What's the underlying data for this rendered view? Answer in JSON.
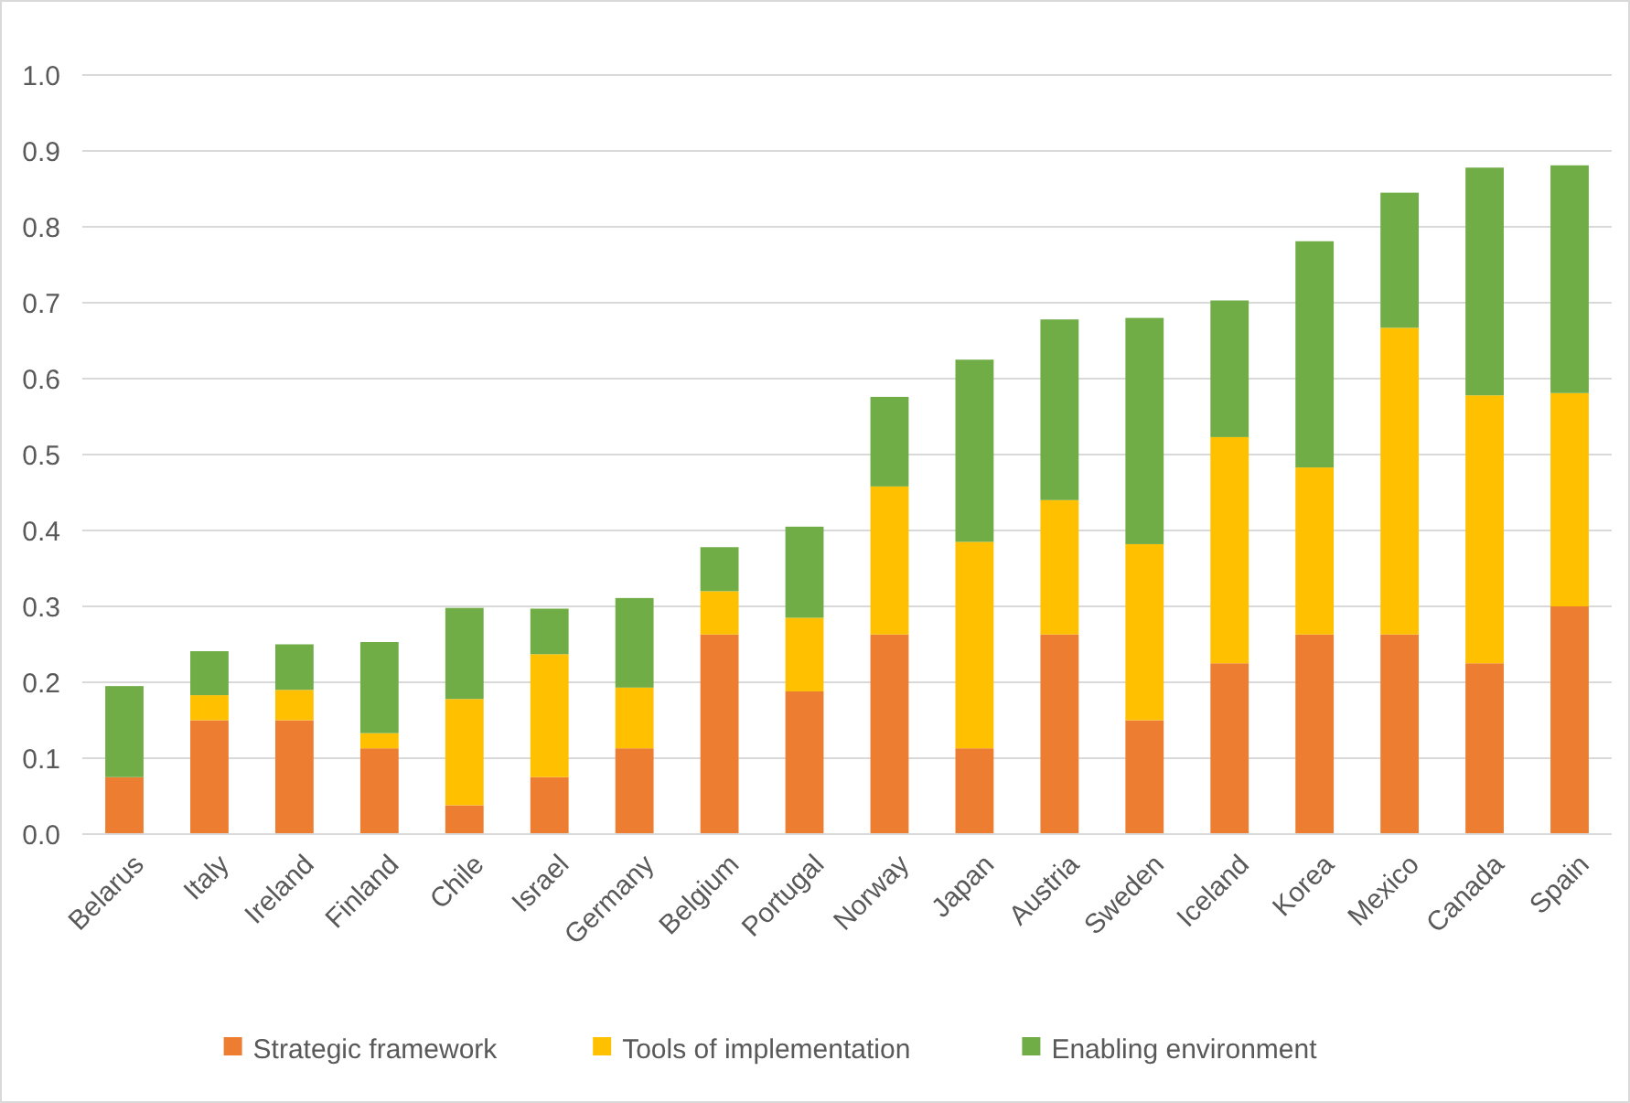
{
  "chart_data": {
    "type": "bar",
    "stacked": true,
    "categories": [
      "Belarus",
      "Italy",
      "Ireland",
      "Finland",
      "Chile",
      "Israel",
      "Germany",
      "Belgium",
      "Portugal",
      "Norway",
      "Japan",
      "Austria",
      "Sweden",
      "Iceland",
      "Korea",
      "Mexico",
      "Canada",
      "Spain"
    ],
    "series": [
      {
        "name": "Strategic framework",
        "color": "#ed7d31",
        "values": [
          0.075,
          0.15,
          0.15,
          0.113,
          0.038,
          0.075,
          0.113,
          0.263,
          0.188,
          0.263,
          0.113,
          0.263,
          0.15,
          0.225,
          0.263,
          0.263,
          0.225,
          0.3
        ]
      },
      {
        "name": "Tools of implementation",
        "color": "#ffc000",
        "values": [
          0,
          0.033,
          0.04,
          0.02,
          0.14,
          0.162,
          0.08,
          0.057,
          0.097,
          0.195,
          0.272,
          0.177,
          0.232,
          0.298,
          0.22,
          0.404,
          0.353,
          0.281
        ]
      },
      {
        "name": "Enabling environment",
        "color": "#70ad47",
        "values": [
          0.12,
          0.058,
          0.06,
          0.12,
          0.12,
          0.06,
          0.118,
          0.058,
          0.12,
          0.118,
          0.24,
          0.238,
          0.298,
          0.18,
          0.298,
          0.178,
          0.3,
          0.3
        ]
      }
    ],
    "ylim": [
      0,
      1
    ],
    "yticks": [
      {
        "value": 0,
        "label": "0.0"
      },
      {
        "value": 0.1,
        "label": "0.1"
      },
      {
        "value": 0.2,
        "label": "0.2"
      },
      {
        "value": 0.3,
        "label": "0.3"
      },
      {
        "value": 0.4,
        "label": "0.4"
      },
      {
        "value": 0.5,
        "label": "0.5"
      },
      {
        "value": 0.6,
        "label": "0.6"
      },
      {
        "value": 0.7,
        "label": "0.7"
      },
      {
        "value": 0.8,
        "label": "0.8"
      },
      {
        "value": 0.9,
        "label": "0.9"
      },
      {
        "value": 1,
        "label": "1.0"
      }
    ],
    "grid": "y",
    "legend": "bottom"
  }
}
